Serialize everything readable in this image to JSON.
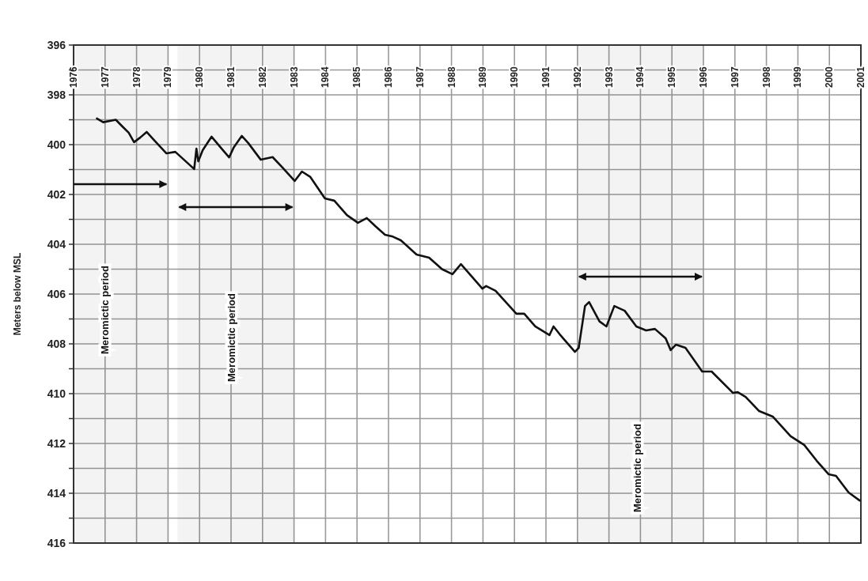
{
  "chart_data": {
    "type": "line",
    "ylabel": "Meters below MSL",
    "x": [
      1976.74,
      1976.94,
      1977.34,
      1977.55,
      1977.75,
      1977.92,
      1978.12,
      1978.32,
      1978.57,
      1978.95,
      1979.23,
      1979.5,
      1979.83,
      1979.9,
      1979.96,
      1980.1,
      1980.38,
      1980.74,
      1980.94,
      1981.09,
      1981.34,
      1981.55,
      1981.94,
      1982.32,
      1982.62,
      1983.02,
      1983.25,
      1983.52,
      1983.98,
      1984.28,
      1984.68,
      1985.03,
      1985.31,
      1985.58,
      1985.89,
      1986.11,
      1986.39,
      1986.89,
      1987.29,
      1987.7,
      1988.03,
      1988.3,
      1988.98,
      1989.1,
      1989.4,
      1990.06,
      1990.31,
      1990.66,
      1991.11,
      1991.24,
      1991.44,
      1991.92,
      1992.04,
      1992.24,
      1992.37,
      1992.7,
      1992.92,
      1993.17,
      1993.5,
      1993.87,
      1994.18,
      1994.46,
      1994.8,
      1994.96,
      1995.13,
      1995.43,
      1995.96,
      1996.26,
      1996.94,
      1997.09,
      1997.34,
      1997.77,
      1998.2,
      1998.77,
      1999.2,
      1999.6,
      1999.98,
      2000.21,
      2000.61,
      2000.96
    ],
    "series": [
      {
        "color": "#111111",
        "values": [
          398.95,
          399.1,
          399.0,
          399.27,
          399.52,
          399.9,
          399.71,
          399.49,
          399.84,
          400.35,
          400.29,
          400.6,
          400.98,
          400.16,
          400.67,
          400.22,
          399.68,
          400.22,
          400.51,
          400.1,
          399.65,
          399.94,
          400.6,
          400.5,
          400.9,
          401.46,
          401.08,
          401.3,
          402.16,
          402.25,
          402.83,
          403.14,
          402.95,
          403.27,
          403.62,
          403.68,
          403.84,
          404.41,
          404.54,
          405.0,
          405.2,
          404.8,
          405.78,
          405.68,
          405.87,
          406.79,
          406.79,
          407.3,
          407.65,
          407.3,
          407.62,
          408.32,
          408.16,
          406.48,
          406.32,
          407.1,
          407.3,
          406.48,
          406.67,
          407.3,
          407.46,
          407.4,
          407.78,
          408.25,
          408.03,
          408.16,
          409.11,
          409.11,
          409.97,
          409.94,
          410.13,
          410.7,
          410.92,
          411.71,
          412.06,
          412.7,
          413.24,
          413.3,
          413.97,
          414.29
        ]
      }
    ],
    "xlim": [
      1976,
      2001
    ],
    "xticks": [
      1976,
      1977,
      1978,
      1979,
      1980,
      1981,
      1982,
      1983,
      1984,
      1985,
      1986,
      1987,
      1988,
      1989,
      1990,
      1991,
      1992,
      1993,
      1994,
      1995,
      1996,
      1997,
      1998,
      1999,
      2000,
      2001
    ],
    "ylim": [
      416,
      396
    ],
    "yticks": [
      396,
      {
        "value": 397,
        "label": null
      },
      398,
      {
        "value": 399,
        "label": null
      },
      400,
      {
        "value": 401,
        "label": null
      },
      402,
      {
        "value": 403,
        "label": null
      },
      404,
      {
        "value": 405,
        "label": null
      },
      406,
      {
        "value": 407,
        "label": null
      },
      408,
      {
        "value": 409,
        "label": null
      },
      410,
      {
        "value": 411,
        "label": null
      },
      412,
      {
        "value": 413,
        "label": null
      },
      414,
      {
        "value": 415,
        "label": null
      },
      416
    ],
    "grid": true,
    "marker": "none",
    "line_style": "solid",
    "bands": [
      {
        "axis": "x",
        "from": 1976,
        "to": 1979,
        "label": "Meromictic period",
        "color": "#111111"
      },
      {
        "axis": "x",
        "from": 1979.3,
        "to": 1983,
        "label": "Meromictic period",
        "color": "#111111"
      },
      {
        "axis": "x",
        "from": 1992,
        "to": 1996,
        "label": "Meromictic period",
        "color": "#111111"
      }
    ]
  }
}
